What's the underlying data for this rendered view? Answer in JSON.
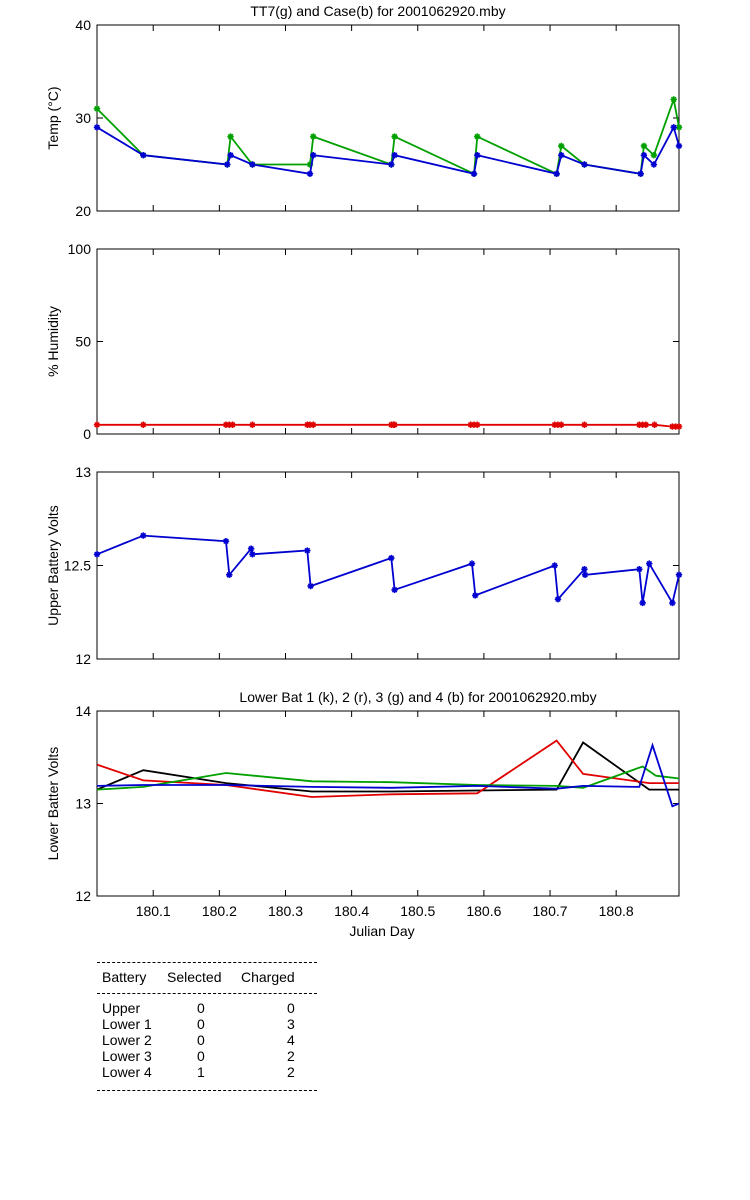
{
  "chart_data": [
    {
      "type": "line",
      "title": "TT7(g) and Case(b) for 2001062920.mby",
      "xlabel": "",
      "ylabel": "Temp  (°C)",
      "xlim": [
        180.015,
        180.895
      ],
      "ylim": [
        20,
        40
      ],
      "yticks": [
        20,
        30,
        40
      ],
      "series": [
        {
          "name": "TT7",
          "color": "#00a000",
          "marker": "*",
          "x": [
            180.015,
            180.085,
            180.212,
            180.217,
            180.25,
            180.337,
            180.342,
            180.46,
            180.465,
            180.585,
            180.59,
            180.71,
            180.717,
            180.752,
            180.837,
            180.842,
            180.857,
            180.887,
            180.895
          ],
          "y": [
            31,
            26,
            25,
            28,
            25,
            25,
            28,
            25,
            28,
            24,
            28,
            24,
            27,
            25,
            24,
            27,
            26,
            32,
            29
          ]
        },
        {
          "name": "Case",
          "color": "#0000d0",
          "marker": "*",
          "x": [
            180.015,
            180.085,
            180.212,
            180.217,
            180.25,
            180.337,
            180.342,
            180.46,
            180.465,
            180.585,
            180.59,
            180.71,
            180.717,
            180.752,
            180.837,
            180.842,
            180.857,
            180.887,
            180.895
          ],
          "y": [
            29,
            26,
            25,
            26,
            25,
            24,
            26,
            25,
            26,
            24,
            26,
            24,
            26,
            25,
            24,
            26,
            25,
            29,
            27
          ]
        }
      ]
    },
    {
      "type": "line",
      "title": "",
      "xlabel": "",
      "ylabel": "% Humidity",
      "xlim": [
        180.015,
        180.895
      ],
      "ylim": [
        0,
        100
      ],
      "yticks": [
        0,
        50,
        100
      ],
      "series": [
        {
          "name": "Humidity",
          "color": "#e00000",
          "marker": "*",
          "x": [
            180.015,
            180.085,
            180.21,
            180.215,
            180.22,
            180.25,
            180.333,
            180.337,
            180.342,
            180.46,
            180.463,
            180.465,
            180.58,
            180.585,
            180.59,
            180.707,
            180.712,
            180.717,
            180.752,
            180.835,
            180.84,
            180.845,
            180.858,
            180.885,
            180.89,
            180.895
          ],
          "y": [
            5,
            5,
            5,
            5,
            5,
            5,
            5,
            5,
            5,
            5,
            5,
            5,
            5,
            5,
            5,
            5,
            5,
            5,
            5,
            5,
            5,
            5,
            5,
            4,
            4,
            4
          ]
        }
      ]
    },
    {
      "type": "line",
      "title": "",
      "xlabel": "",
      "ylabel": "Upper Battery Volts",
      "xlim": [
        180.015,
        180.895
      ],
      "ylim": [
        12,
        13
      ],
      "yticks": [
        12,
        12.5,
        13
      ],
      "ytick_labels": [
        "12",
        "12.5",
        "13"
      ],
      "series": [
        {
          "name": "Upper",
          "color": "#0000d0",
          "marker": "*",
          "x": [
            180.015,
            180.085,
            180.21,
            180.215,
            180.248,
            180.25,
            180.333,
            180.338,
            180.46,
            180.465,
            180.582,
            180.587,
            180.707,
            180.712,
            180.752,
            180.753,
            180.835,
            180.84,
            180.85,
            180.885,
            180.895
          ],
          "y": [
            12.56,
            12.66,
            12.63,
            12.45,
            12.59,
            12.56,
            12.58,
            12.39,
            12.54,
            12.37,
            12.51,
            12.34,
            12.5,
            12.32,
            12.48,
            12.45,
            12.48,
            12.3,
            12.51,
            12.3,
            12.45
          ]
        }
      ]
    },
    {
      "type": "line",
      "title": "Lower Bat 1 (k), 2 (r), 3 (g) and 4 (b) for 2001062920.mby",
      "xlabel": "Julian Day",
      "ylabel": "Lower Batter Volts",
      "xlim": [
        180.015,
        180.895
      ],
      "ylim": [
        12,
        14
      ],
      "yticks": [
        12,
        13,
        14
      ],
      "xticks": [
        180.1,
        180.2,
        180.3,
        180.4,
        180.5,
        180.6,
        180.7,
        180.8
      ],
      "xtick_labels": [
        "180.1",
        "180.2",
        "180.3",
        "180.4",
        "180.5",
        "180.6",
        "180.7",
        "180.8"
      ],
      "series": [
        {
          "name": "Lower 1",
          "color": "#000000",
          "x": [
            180.015,
            180.085,
            180.21,
            180.34,
            180.46,
            180.59,
            180.71,
            180.75,
            180.85,
            180.895
          ],
          "y": [
            13.15,
            13.36,
            13.22,
            13.13,
            13.13,
            13.14,
            13.15,
            13.66,
            13.15,
            13.15
          ]
        },
        {
          "name": "Lower 2",
          "color": "#e00000",
          "x": [
            180.015,
            180.085,
            180.21,
            180.34,
            180.46,
            180.59,
            180.71,
            180.75,
            180.85,
            180.895
          ],
          "y": [
            13.42,
            13.25,
            13.2,
            13.07,
            13.1,
            13.11,
            13.68,
            13.32,
            13.22,
            13.22
          ]
        },
        {
          "name": "Lower 3",
          "color": "#00a000",
          "x": [
            180.015,
            180.085,
            180.21,
            180.34,
            180.46,
            180.59,
            180.71,
            180.75,
            180.84,
            180.86,
            180.895
          ],
          "y": [
            13.15,
            13.18,
            13.33,
            13.24,
            13.23,
            13.2,
            13.19,
            13.17,
            13.4,
            13.3,
            13.27
          ]
        },
        {
          "name": "Lower 4",
          "color": "#0000d0",
          "x": [
            180.015,
            180.085,
            180.21,
            180.34,
            180.46,
            180.59,
            180.71,
            180.75,
            180.835,
            180.855,
            180.885,
            180.895
          ],
          "y": [
            13.19,
            13.2,
            13.2,
            13.18,
            13.17,
            13.19,
            13.16,
            13.19,
            13.18,
            13.63,
            12.97,
            13.0
          ]
        }
      ]
    }
  ],
  "status_table": {
    "headers": {
      "battery": "Battery",
      "selected": "Selected",
      "charged": "Charged"
    },
    "rows": [
      {
        "battery": "Upper",
        "selected": "0",
        "charged": "0"
      },
      {
        "battery": "Lower 1",
        "selected": "0",
        "charged": "3"
      },
      {
        "battery": "Lower 2",
        "selected": "0",
        "charged": "4"
      },
      {
        "battery": "Lower 3",
        "selected": "0",
        "charged": "2"
      },
      {
        "battery": "Lower 4",
        "selected": "1",
        "charged": "2"
      }
    ]
  }
}
